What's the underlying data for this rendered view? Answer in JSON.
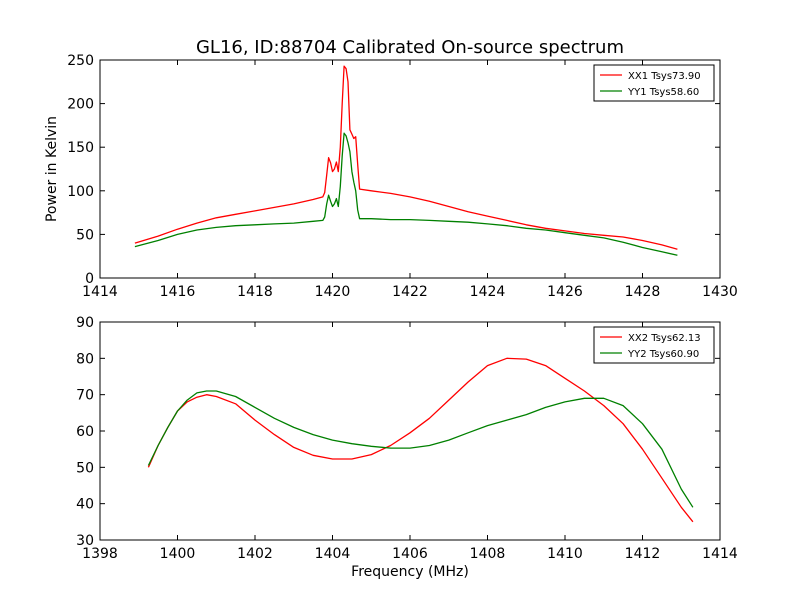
{
  "figure": {
    "title": "GL16, ID:88704 Calibrated On-source spectrum"
  },
  "chart_data": [
    {
      "type": "line",
      "title": "GL16, ID:88704 Calibrated On-source spectrum",
      "xlabel": "",
      "ylabel": "Power in Kelvin",
      "xlim": [
        1414,
        1430
      ],
      "ylim": [
        0,
        250
      ],
      "xticks": [
        "1414",
        "1416",
        "1418",
        "1420",
        "1422",
        "1424",
        "1426",
        "1428",
        "1430"
      ],
      "yticks": [
        "0",
        "50",
        "100",
        "150",
        "200",
        "250"
      ],
      "grid": false,
      "legend_position": "top-right",
      "series": [
        {
          "name": "XX1 Tsys73.90",
          "color": "#ff0000",
          "points": [
            [
              1414.9,
              40
            ],
            [
              1415.5,
              48
            ],
            [
              1416,
              56
            ],
            [
              1416.5,
              63
            ],
            [
              1417,
              69
            ],
            [
              1417.5,
              73
            ],
            [
              1418,
              77
            ],
            [
              1418.5,
              81
            ],
            [
              1419,
              85
            ],
            [
              1419.5,
              90
            ],
            [
              1419.75,
              93
            ],
            [
              1419.8,
              98
            ],
            [
              1419.85,
              118
            ],
            [
              1419.9,
              138
            ],
            [
              1419.95,
              132
            ],
            [
              1420.0,
              122
            ],
            [
              1420.05,
              125
            ],
            [
              1420.1,
              133
            ],
            [
              1420.15,
              122
            ],
            [
              1420.2,
              150
            ],
            [
              1420.25,
              200
            ],
            [
              1420.3,
              243
            ],
            [
              1420.35,
              240
            ],
            [
              1420.4,
              225
            ],
            [
              1420.45,
              170
            ],
            [
              1420.5,
              165
            ],
            [
              1420.55,
              160
            ],
            [
              1420.6,
              162
            ],
            [
              1420.65,
              130
            ],
            [
              1420.7,
              102
            ],
            [
              1421,
              100
            ],
            [
              1421.5,
              97
            ],
            [
              1422,
              93
            ],
            [
              1422.5,
              88
            ],
            [
              1423,
              82
            ],
            [
              1423.5,
              76
            ],
            [
              1424,
              71
            ],
            [
              1424.5,
              66
            ],
            [
              1425,
              61
            ],
            [
              1425.5,
              57
            ],
            [
              1426,
              54
            ],
            [
              1426.5,
              51
            ],
            [
              1427,
              49
            ],
            [
              1427.5,
              47
            ],
            [
              1428,
              43
            ],
            [
              1428.5,
              38
            ],
            [
              1428.9,
              33
            ]
          ]
        },
        {
          "name": "YY1 Tsys58.60",
          "color": "#008000",
          "points": [
            [
              1414.9,
              36
            ],
            [
              1415.5,
              43
            ],
            [
              1416,
              50
            ],
            [
              1416.5,
              55
            ],
            [
              1417,
              58
            ],
            [
              1417.5,
              60
            ],
            [
              1418,
              61
            ],
            [
              1418.5,
              62
            ],
            [
              1419,
              63
            ],
            [
              1419.5,
              65
            ],
            [
              1419.75,
              66
            ],
            [
              1419.8,
              70
            ],
            [
              1419.85,
              85
            ],
            [
              1419.9,
              95
            ],
            [
              1419.95,
              88
            ],
            [
              1420.0,
              82
            ],
            [
              1420.05,
              85
            ],
            [
              1420.1,
              91
            ],
            [
              1420.15,
              82
            ],
            [
              1420.2,
              105
            ],
            [
              1420.25,
              140
            ],
            [
              1420.3,
              166
            ],
            [
              1420.35,
              163
            ],
            [
              1420.4,
              155
            ],
            [
              1420.45,
              145
            ],
            [
              1420.5,
              122
            ],
            [
              1420.55,
              110
            ],
            [
              1420.6,
              100
            ],
            [
              1420.65,
              78
            ],
            [
              1420.7,
              68
            ],
            [
              1421,
              68
            ],
            [
              1421.5,
              67
            ],
            [
              1422,
              67
            ],
            [
              1422.5,
              66
            ],
            [
              1423,
              65
            ],
            [
              1423.5,
              64
            ],
            [
              1424,
              62
            ],
            [
              1424.5,
              60
            ],
            [
              1425,
              57
            ],
            [
              1425.5,
              55
            ],
            [
              1426,
              52
            ],
            [
              1426.5,
              49
            ],
            [
              1427,
              46
            ],
            [
              1427.5,
              41
            ],
            [
              1428,
              35
            ],
            [
              1428.5,
              30
            ],
            [
              1428.9,
              26
            ]
          ]
        }
      ]
    },
    {
      "type": "line",
      "title": "",
      "xlabel": "Frequency (MHz)",
      "ylabel": "",
      "xlim": [
        1398,
        1414
      ],
      "ylim": [
        30,
        90
      ],
      "xticks": [
        "1398",
        "1400",
        "1402",
        "1404",
        "1406",
        "1408",
        "1410",
        "1412",
        "1414"
      ],
      "yticks": [
        "30",
        "40",
        "50",
        "60",
        "70",
        "80",
        "90"
      ],
      "grid": false,
      "legend_position": "top-right",
      "series": [
        {
          "name": "XX2 Tsys62.13",
          "color": "#ff0000",
          "points": [
            [
              1399.25,
              50
            ],
            [
              1399.5,
              56
            ],
            [
              1399.75,
              61
            ],
            [
              1400,
              65.5
            ],
            [
              1400.25,
              68
            ],
            [
              1400.5,
              69.3
            ],
            [
              1400.75,
              70
            ],
            [
              1401,
              69.5
            ],
            [
              1401.5,
              67.5
            ],
            [
              1402,
              63
            ],
            [
              1402.5,
              59
            ],
            [
              1403,
              55.5
            ],
            [
              1403.5,
              53.3
            ],
            [
              1404,
              52.3
            ],
            [
              1404.5,
              52.3
            ],
            [
              1405,
              53.5
            ],
            [
              1405.5,
              56
            ],
            [
              1406,
              59.5
            ],
            [
              1406.5,
              63.5
            ],
            [
              1407,
              68.5
            ],
            [
              1407.5,
              73.5
            ],
            [
              1408,
              78
            ],
            [
              1408.5,
              80
            ],
            [
              1409,
              79.8
            ],
            [
              1409.5,
              78
            ],
            [
              1410,
              74.5
            ],
            [
              1410.5,
              71
            ],
            [
              1411,
              67
            ],
            [
              1411.5,
              62
            ],
            [
              1412,
              55
            ],
            [
              1412.5,
              47
            ],
            [
              1413,
              39
            ],
            [
              1413.3,
              35
            ]
          ]
        },
        {
          "name": "YY2 Tsys60.90",
          "color": "#008000",
          "points": [
            [
              1399.25,
              50.5
            ],
            [
              1399.5,
              56
            ],
            [
              1399.75,
              61
            ],
            [
              1400,
              65.5
            ],
            [
              1400.25,
              68.5
            ],
            [
              1400.5,
              70.5
            ],
            [
              1400.75,
              71
            ],
            [
              1401,
              71
            ],
            [
              1401.5,
              69.5
            ],
            [
              1402,
              66.5
            ],
            [
              1402.5,
              63.5
            ],
            [
              1403,
              61
            ],
            [
              1403.5,
              59
            ],
            [
              1404,
              57.5
            ],
            [
              1404.5,
              56.5
            ],
            [
              1405,
              55.8
            ],
            [
              1405.5,
              55.3
            ],
            [
              1406,
              55.3
            ],
            [
              1406.5,
              56
            ],
            [
              1407,
              57.5
            ],
            [
              1407.5,
              59.5
            ],
            [
              1408,
              61.5
            ],
            [
              1408.5,
              63
            ],
            [
              1409,
              64.5
            ],
            [
              1409.5,
              66.5
            ],
            [
              1410,
              68
            ],
            [
              1410.5,
              69
            ],
            [
              1411,
              69
            ],
            [
              1411.5,
              67
            ],
            [
              1412,
              62
            ],
            [
              1412.5,
              55
            ],
            [
              1413,
              44
            ],
            [
              1413.3,
              39
            ]
          ]
        }
      ]
    }
  ]
}
